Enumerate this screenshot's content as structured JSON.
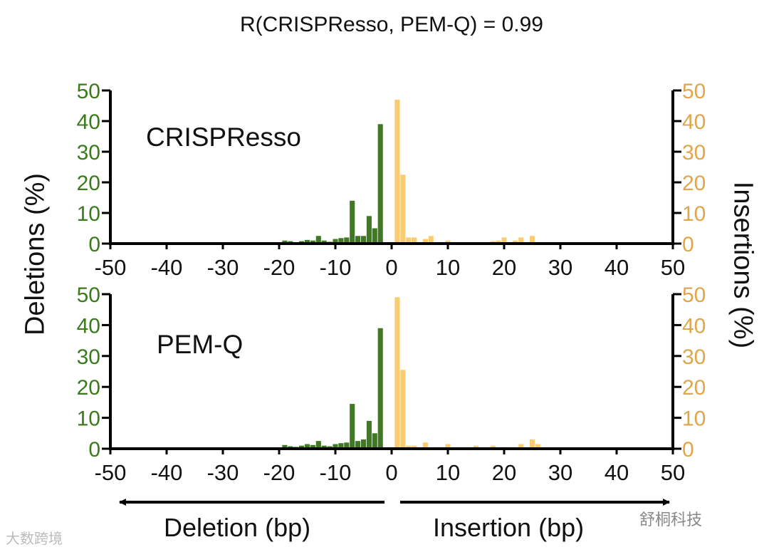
{
  "title": "R(CRISPResso, PEM-Q) = 0.99",
  "colors": {
    "deletion": "#3f7a22",
    "insertion": "#f9cc74",
    "deletion_axis": "#3c7a1e",
    "insertion_axis": "#e0a64e",
    "axis": "#000000"
  },
  "axis_labels": {
    "left": "Deletions (%)",
    "right": "Insertions (%)"
  },
  "bottom_labels": {
    "deletion": "Deletion (bp)",
    "insertion": "Insertion (bp)"
  },
  "watermarks": {
    "left": "大数跨境",
    "right": "舒桐科技"
  },
  "chart_data": [
    {
      "type": "bar",
      "label": "CRISPResso",
      "xlim": [
        -50,
        50
      ],
      "ylim": [
        0,
        50
      ],
      "x_ticks": [
        -50,
        -40,
        -30,
        -20,
        -10,
        0,
        10,
        20,
        30,
        40,
        50
      ],
      "y_ticks": [
        0,
        10,
        20,
        30,
        40,
        50
      ],
      "series": [
        {
          "name": "Deletions",
          "axis": "left",
          "x": [
            -19,
            -18,
            -16,
            -15,
            -14,
            -13,
            -12,
            -11,
            -10,
            -9,
            -8,
            -7,
            -6,
            -5,
            -4,
            -3,
            -2,
            -1
          ],
          "values": [
            1.0,
            0.8,
            0.8,
            1.2,
            1.0,
            2.5,
            1.0,
            0.6,
            1.5,
            1.8,
            2.0,
            14.0,
            2.5,
            2.5,
            9.0,
            5.0,
            39.0,
            0
          ]
        },
        {
          "name": "Insertions",
          "axis": "right",
          "x": [
            1,
            2,
            3,
            4,
            6,
            7,
            10,
            18,
            19,
            20,
            22,
            23,
            25
          ],
          "values": [
            47.0,
            22.5,
            2.0,
            2.0,
            1.5,
            2.5,
            1.0,
            0.8,
            1.0,
            2.0,
            1.0,
            2.0,
            2.5
          ]
        }
      ]
    },
    {
      "type": "bar",
      "label": "PEM-Q",
      "xlim": [
        -50,
        50
      ],
      "ylim": [
        0,
        50
      ],
      "x_ticks": [
        -50,
        -40,
        -30,
        -20,
        -10,
        0,
        10,
        20,
        30,
        40,
        50
      ],
      "y_ticks": [
        0,
        10,
        20,
        30,
        40,
        50
      ],
      "series": [
        {
          "name": "Deletions",
          "axis": "left",
          "x": [
            -24,
            -19,
            -18,
            -17,
            -16,
            -15,
            -14,
            -13,
            -12,
            -11,
            -10,
            -9,
            -8,
            -7,
            -6,
            -5,
            -4,
            -3,
            -2
          ],
          "values": [
            0.3,
            1.2,
            0.8,
            0.6,
            1.0,
            1.5,
            1.2,
            2.5,
            1.0,
            0.8,
            1.5,
            1.8,
            2.0,
            14.5,
            2.5,
            3.0,
            9.0,
            5.0,
            39.0
          ]
        },
        {
          "name": "Insertions",
          "axis": "right",
          "x": [
            1,
            2,
            3,
            4,
            6,
            10,
            15,
            18,
            20,
            23,
            25,
            26
          ],
          "values": [
            49.0,
            25.5,
            1.0,
            1.0,
            2.0,
            1.5,
            1.0,
            1.0,
            0.5,
            1.5,
            3.0,
            1.5
          ]
        }
      ]
    }
  ]
}
